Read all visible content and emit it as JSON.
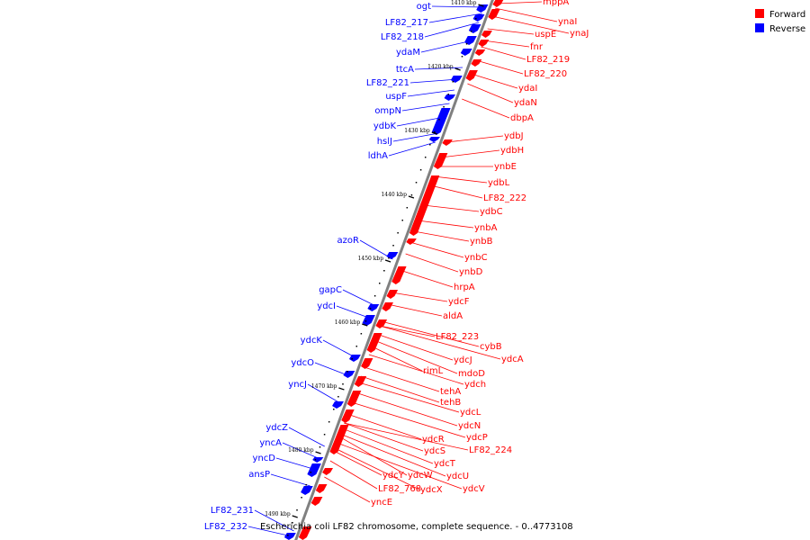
{
  "colors": {
    "forward": "#ff0000",
    "reverse": "#0000ff",
    "backbone": "#808080",
    "text": "#000000"
  },
  "legend": [
    {
      "label": "Forward",
      "strand": "forward"
    },
    {
      "label": "Reverse",
      "strand": "reverse"
    }
  ],
  "caption": "Escherichia coli LF82 chromosome, complete sequence. - 0..4773108",
  "ticks": [
    "1410 kbp",
    "1420 kbp",
    "1430 kbp",
    "1440 kbp",
    "1450 kbp",
    "1460 kbp",
    "1470 kbp",
    "1480 kbp",
    "1490 kbp"
  ],
  "reverse_genes": [
    "ogt",
    "LF82_217",
    "LF82_218",
    "ydaM",
    "ttcA",
    "LF82_221",
    "uspF",
    "ompN",
    "ydbK",
    "hslJ",
    "ldhA",
    "azoR",
    "gapC",
    "ydcI",
    "ydcK",
    "ydcO",
    "yncJ",
    "ydcZ",
    "yncA",
    "yncD",
    "ansP",
    "LF82_231",
    "LF82_232"
  ],
  "forward_genes": [
    "mppA",
    "ynaI",
    "ynaJ",
    "uspE",
    "fnr",
    "LF82_219",
    "LF82_220",
    "ydaI",
    "ydaN",
    "dbpA",
    "ydbJ",
    "ydbH",
    "ynbE",
    "ydbL",
    "LF82_222",
    "ydbC",
    "ynbA",
    "ynbB",
    "ynbC",
    "ynbD",
    "hrpA",
    "ydcF",
    "aldA",
    "LF82_223",
    "cybB",
    "ydcA",
    "ydcJ",
    "rimL",
    "mdoD",
    "ydch",
    "tehA",
    "tehB",
    "ydcL",
    "ydcN",
    "ydcP",
    "ydcR",
    "LF82_224",
    "ydcS",
    "ydcT",
    "ydcU",
    "ydcW",
    "ydcY",
    "ydcV",
    "ydcX",
    "LF82_768",
    "yncE"
  ]
}
